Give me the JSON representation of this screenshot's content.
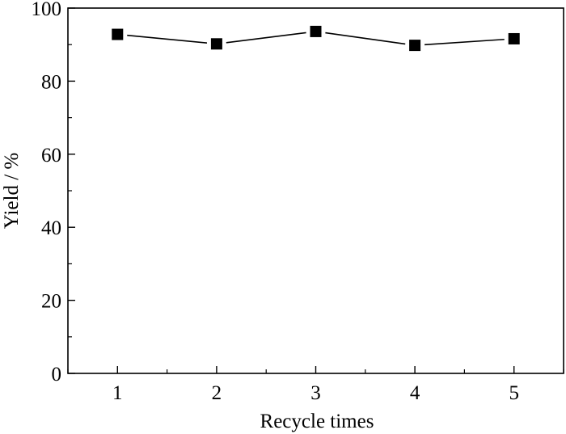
{
  "chart_data": {
    "type": "line",
    "title": "",
    "xlabel": "Recycle times",
    "ylabel": "Yield / %",
    "x": [
      1,
      2,
      3,
      4,
      5
    ],
    "series": [
      {
        "values": [
          92.8,
          90.2,
          93.6,
          89.8,
          91.6
        ],
        "marker": "square",
        "color": "#000000"
      }
    ],
    "xlim": [
      0.5,
      5.5
    ],
    "ylim": [
      0,
      100
    ],
    "x_ticks": [
      "1",
      "2",
      "3",
      "4",
      "5"
    ],
    "y_ticks": [
      "0",
      "20",
      "40",
      "60",
      "80",
      "100"
    ],
    "grid": false,
    "legend": "none"
  }
}
